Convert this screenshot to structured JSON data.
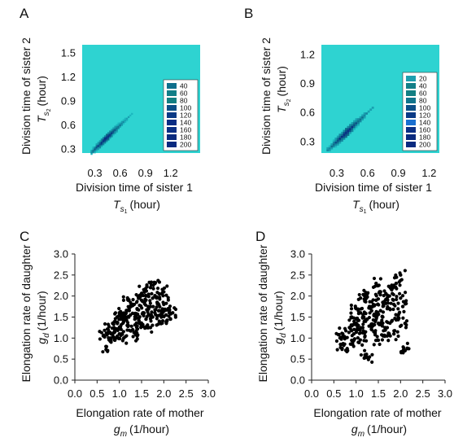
{
  "panels": [
    {
      "letter": "A",
      "xlabel_line1": "Division time of sister 1",
      "xlabel_line2_sym": "T",
      "xlabel_line2_sub": "s",
      "xlabel_line2_subsub": "1",
      "xlabel_line2_unit": "(hour)",
      "ylabel_line1": "Division time of sister 2",
      "ylabel_line2_sym": "T",
      "ylabel_line2_sub": "s",
      "ylabel_line2_subsub": "2",
      "ylabel_line2_unit": "(hour)"
    },
    {
      "letter": "B",
      "xlabel_line1": "Division time of sister 1",
      "xlabel_line2_sym": "T",
      "xlabel_line2_sub": "s",
      "xlabel_line2_subsub": "1",
      "xlabel_line2_unit": "(hour)",
      "ylabel_line1": "Division time of sister 2",
      "ylabel_line2_sym": "T",
      "ylabel_line2_sub": "s",
      "ylabel_line2_subsub": "2",
      "ylabel_line2_unit": "(hour)"
    },
    {
      "letter": "C",
      "xlabel_line1": "Elongation rate of mother",
      "xlabel_line2_sym": "g",
      "xlabel_line2_sub": "m",
      "xlabel_line2_unit": "(1/hour)",
      "ylabel_line1": "Elongation rate of daughter",
      "ylabel_line2_sym": "g",
      "ylabel_line2_sub": "d",
      "ylabel_line2_unit": "(1/hour)"
    },
    {
      "letter": "D",
      "xlabel_line1": "Elongation rate of mother",
      "xlabel_line2_sym": "g",
      "xlabel_line2_sub": "m",
      "xlabel_line2_unit": "(1/hour)",
      "ylabel_line1": "Elongation rate of daughter",
      "ylabel_line2_sym": "g",
      "ylabel_line2_sub": "d",
      "ylabel_line2_unit": "(1/hour)"
    }
  ],
  "colors": {
    "heatmap_background": "#2ed3d1",
    "scatter_point": "#000000",
    "axis": "#222222"
  },
  "chart_data": [
    {
      "panel": "A",
      "type": "heatmap",
      "xlim": [
        0.15,
        1.55
      ],
      "ylim": [
        0.25,
        1.6
      ],
      "xticks": [
        "0.3",
        "0.6",
        "0.9",
        "1.2"
      ],
      "xtick_values": [
        0.3,
        0.6,
        0.9,
        1.2
      ],
      "yticks": [
        "0.3",
        "0.6",
        "0.9",
        "1.2",
        "1.5"
      ],
      "ytick_values": [
        0.3,
        0.6,
        0.9,
        1.2,
        1.5
      ],
      "legend_placement": "lower-right",
      "legend_entries": [
        "40",
        "60",
        "80",
        "100",
        "120",
        "140",
        "160",
        "180",
        "200"
      ],
      "legend_colors": [
        "#0f6f8c",
        "#127f88",
        "#137f83",
        "#0c4f87",
        "#0b3a86",
        "#0a2d84",
        "#0b2f85",
        "#0a2a7f",
        "#0a2a7f"
      ],
      "density_ridge": {
        "x_from": 0.25,
        "x_to": 0.95,
        "peak_x": 0.42,
        "peak_count": 200
      }
    },
    {
      "panel": "B",
      "type": "heatmap",
      "xlim": [
        0.15,
        1.3
      ],
      "ylim": [
        0.18,
        1.3
      ],
      "xticks": [
        "0.3",
        "0.6",
        "0.9",
        "1.2"
      ],
      "xtick_values": [
        0.3,
        0.6,
        0.9,
        1.2
      ],
      "yticks": [
        "0.3",
        "0.6",
        "0.9",
        "1.2"
      ],
      "ytick_values": [
        0.3,
        0.6,
        0.9,
        1.2
      ],
      "legend_placement": "lower-right",
      "legend_entries": [
        "20",
        "40",
        "60",
        "80",
        "100",
        "120",
        "140",
        "160",
        "180",
        "200"
      ],
      "legend_colors": [
        "#1d9eae",
        "#127f88",
        "#137f83",
        "#11748c",
        "#0c4f87",
        "#0b3a86",
        "#1a6fd0",
        "#0b2f85",
        "#0a2a7f",
        "#0a2a7f"
      ],
      "density_ridge": {
        "x_from": 0.2,
        "x_to": 0.8,
        "peak_x": 0.38,
        "peak_count": 200
      }
    },
    {
      "panel": "C",
      "type": "scatter",
      "xlim": [
        0,
        3
      ],
      "ylim": [
        0,
        3
      ],
      "xticks": [
        "0.0",
        "0.5",
        "1.0",
        "1.5",
        "2.0",
        "2.5",
        "3.0"
      ],
      "xtick_values": [
        0,
        0.5,
        1,
        1.5,
        2,
        2.5,
        3
      ],
      "yticks": [
        "0.0",
        "0.5",
        "1.0",
        "1.5",
        "2.0",
        "2.5",
        "3.0"
      ],
      "ytick_values": [
        0,
        0.5,
        1,
        1.5,
        2,
        2.5,
        3
      ],
      "grid": false,
      "points": [
        [
          0.65,
          1.05
        ],
        [
          0.7,
          0.8
        ],
        [
          0.75,
          1.2
        ],
        [
          0.8,
          1.0
        ],
        [
          0.85,
          1.35
        ],
        [
          0.9,
          1.15
        ],
        [
          0.95,
          1.5
        ],
        [
          1.0,
          1.25
        ],
        [
          1.05,
          1.1
        ],
        [
          1.1,
          1.4
        ],
        [
          1.15,
          1.6
        ],
        [
          1.2,
          1.3
        ],
        [
          1.25,
          1.55
        ],
        [
          1.3,
          1.8
        ],
        [
          1.35,
          1.45
        ],
        [
          1.4,
          1.7
        ],
        [
          1.45,
          1.35
        ],
        [
          1.5,
          1.9
        ],
        [
          1.55,
          1.6
        ],
        [
          1.6,
          2.0
        ],
        [
          1.65,
          1.75
        ],
        [
          1.7,
          2.2
        ],
        [
          1.75,
          1.5
        ],
        [
          1.8,
          2.3
        ],
        [
          1.85,
          1.85
        ],
        [
          1.9,
          2.05
        ],
        [
          1.95,
          1.65
        ],
        [
          2.0,
          1.8
        ],
        [
          2.05,
          1.55
        ],
        [
          2.1,
          1.7
        ],
        [
          2.15,
          1.45
        ],
        [
          0.9,
          0.95
        ],
        [
          1.0,
          1.6
        ],
        [
          1.1,
          1.0
        ],
        [
          1.2,
          1.9
        ],
        [
          1.3,
          1.2
        ],
        [
          1.4,
          1.05
        ],
        [
          1.5,
          1.35
        ],
        [
          1.6,
          1.45
        ],
        [
          1.7,
          1.25
        ],
        [
          1.8,
          1.6
        ],
        [
          1.9,
          1.4
        ],
        [
          2.0,
          2.1
        ],
        [
          1.55,
          2.15
        ],
        [
          1.25,
          1.75
        ],
        [
          0.85,
          1.1
        ],
        [
          1.05,
          1.45
        ],
        [
          1.45,
          1.95
        ],
        [
          1.75,
          1.95
        ],
        [
          2.2,
          1.6
        ]
      ]
    },
    {
      "panel": "D",
      "type": "scatter",
      "xlim": [
        0,
        3
      ],
      "ylim": [
        0,
        3
      ],
      "xticks": [
        "0.0",
        "0.5",
        "1.0",
        "1.5",
        "2.0",
        "2.5",
        "3.0"
      ],
      "xtick_values": [
        0,
        0.5,
        1,
        1.5,
        2,
        2.5,
        3
      ],
      "yticks": [
        "0.0",
        "0.5",
        "1.0",
        "1.5",
        "2.0",
        "2.5",
        "3.0"
      ],
      "ytick_values": [
        0,
        0.5,
        1,
        1.5,
        2,
        2.5,
        3
      ],
      "grid": false,
      "points": [
        [
          0.65,
          1.0
        ],
        [
          0.65,
          0.85
        ],
        [
          0.7,
          1.1
        ],
        [
          0.8,
          0.75
        ],
        [
          0.85,
          1.25
        ],
        [
          0.9,
          1.5
        ],
        [
          0.95,
          1.1
        ],
        [
          1.0,
          1.35
        ],
        [
          1.05,
          0.9
        ],
        [
          1.1,
          1.6
        ],
        [
          1.15,
          1.25
        ],
        [
          1.2,
          1.05
        ],
        [
          1.25,
          1.45
        ],
        [
          1.3,
          1.75
        ],
        [
          1.35,
          1.2
        ],
        [
          1.4,
          1.55
        ],
        [
          1.45,
          1.9
        ],
        [
          1.5,
          1.35
        ],
        [
          1.55,
          2.1
        ],
        [
          1.6,
          1.5
        ],
        [
          1.65,
          1.25
        ],
        [
          1.7,
          1.7
        ],
        [
          1.75,
          2.0
        ],
        [
          1.8,
          1.4
        ],
        [
          1.85,
          1.8
        ],
        [
          1.9,
          2.3
        ],
        [
          1.95,
          1.55
        ],
        [
          2.0,
          2.5
        ],
        [
          2.05,
          1.75
        ],
        [
          2.1,
          1.35
        ],
        [
          2.15,
          0.75
        ],
        [
          2.1,
          0.7
        ],
        [
          1.2,
          0.6
        ],
        [
          1.3,
          0.55
        ],
        [
          1.0,
          1.7
        ],
        [
          1.1,
          1.95
        ],
        [
          1.25,
          2.05
        ],
        [
          1.4,
          1.15
        ],
        [
          1.55,
          1.65
        ],
        [
          1.7,
          1.05
        ],
        [
          1.85,
          1.1
        ],
        [
          1.45,
          2.3
        ],
        [
          1.35,
          1.65
        ],
        [
          1.6,
          1.85
        ],
        [
          0.95,
          0.95
        ],
        [
          1.05,
          1.3
        ],
        [
          1.5,
          0.95
        ],
        [
          1.8,
          2.15
        ],
        [
          2.0,
          1.95
        ],
        [
          1.15,
          1.5
        ]
      ]
    }
  ]
}
